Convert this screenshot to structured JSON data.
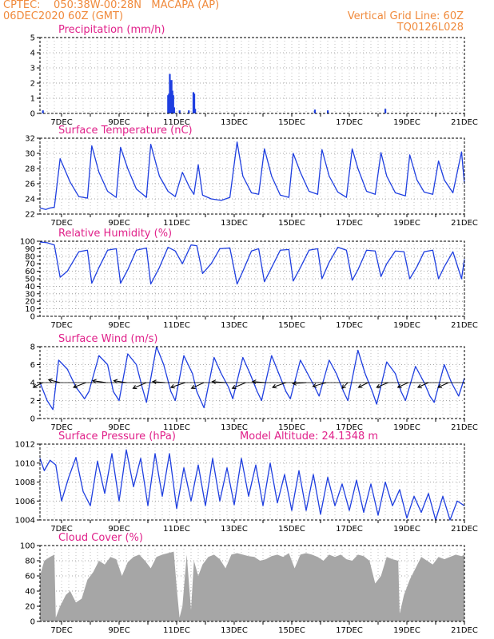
{
  "header": {
    "station": "CPTEC:    050:38W-00:28N   MACAPA (AP)",
    "date": "06DEC2020 60Z (GMT)",
    "grid_note": "Vertical Grid Line: 60Z",
    "run_id": "TQ0126L028"
  },
  "colors": {
    "line": "#1f3fe0",
    "bar": "#1f3fe0",
    "cloud": "#a6a6a6",
    "header": "#f08a3c",
    "title": "#e0218a"
  },
  "chart_data": [
    {
      "id": "precip",
      "type": "bar",
      "title": "Precipitation (mm/h)",
      "xlim": [
        6.25,
        21.0
      ],
      "ylim": [
        0,
        5
      ],
      "yticks": [
        0,
        1,
        2,
        3,
        4,
        5
      ],
      "x_ticks": [
        7,
        9,
        11,
        13,
        15,
        17,
        19,
        21
      ],
      "x_tick_labels": [
        "7DEC",
        "9DEC",
        "11DEC",
        "13DEC",
        "15DEC",
        "17DEC",
        "19DEC",
        "21DEC"
      ],
      "x": [
        6.35,
        10.7,
        10.73,
        10.76,
        10.79,
        10.82,
        10.85,
        10.88,
        10.91,
        11.1,
        11.42,
        11.58,
        11.61,
        11.64,
        15.8,
        16.25,
        18.25
      ],
      "values": [
        0.2,
        1.2,
        1.3,
        2.6,
        1.9,
        2.2,
        1.5,
        1.2,
        0.4,
        0.2,
        0.2,
        1.4,
        1.3,
        0.3,
        0.25,
        0.2,
        0.3
      ]
    },
    {
      "id": "temp",
      "type": "line",
      "title": "Surface Temperature (nC)",
      "xlim": [
        6.25,
        21.0
      ],
      "ylim": [
        22,
        32
      ],
      "yticks": [
        22,
        24,
        26,
        28,
        30,
        32
      ],
      "x_ticks": [
        7,
        9,
        11,
        13,
        15,
        17,
        19,
        21
      ],
      "x_tick_labels": [
        "7DEC",
        "9DEC",
        "11DEC",
        "13DEC",
        "15DEC",
        "17DEC",
        "19DEC",
        "21DEC"
      ],
      "x": [
        6.25,
        6.45,
        6.6,
        6.75,
        6.95,
        7.3,
        7.6,
        7.9,
        8.05,
        8.3,
        8.6,
        8.9,
        9.05,
        9.3,
        9.6,
        9.95,
        10.1,
        10.4,
        10.7,
        10.95,
        11.2,
        11.45,
        11.6,
        11.75,
        11.9,
        12.2,
        12.55,
        12.85,
        13.1,
        13.3,
        13.6,
        13.85,
        14.05,
        14.3,
        14.6,
        14.9,
        15.05,
        15.3,
        15.6,
        15.9,
        16.05,
        16.3,
        16.6,
        16.9,
        17.1,
        17.3,
        17.6,
        17.9,
        18.1,
        18.3,
        18.6,
        18.95,
        19.1,
        19.35,
        19.6,
        19.9,
        20.1,
        20.3,
        20.6,
        20.9,
        21.0
      ],
      "values": [
        22.8,
        22.6,
        22.8,
        22.9,
        29.3,
        26.2,
        24.3,
        24.1,
        31.0,
        27.5,
        25.0,
        24.2,
        30.8,
        28.0,
        25.3,
        24.2,
        31.2,
        27.0,
        25.0,
        24.3,
        27.5,
        25.5,
        24.6,
        28.5,
        24.5,
        24.0,
        23.8,
        24.2,
        31.5,
        27.0,
        24.8,
        24.6,
        30.6,
        27.0,
        24.5,
        24.2,
        30.0,
        27.5,
        25.0,
        24.6,
        30.5,
        27.0,
        24.9,
        24.2,
        30.6,
        28.0,
        25.0,
        24.6,
        30.1,
        27.0,
        24.8,
        24.4,
        29.8,
        26.5,
        24.9,
        24.6,
        29.0,
        26.5,
        24.8,
        30.2,
        26.0
      ]
    },
    {
      "id": "rh",
      "type": "line",
      "title": "Relative Humidity (%)",
      "xlim": [
        6.25,
        21.0
      ],
      "ylim": [
        0,
        100
      ],
      "yticks": [
        0,
        10,
        20,
        30,
        40,
        50,
        60,
        70,
        80,
        90,
        100
      ],
      "x_ticks": [
        7,
        9,
        11,
        13,
        15,
        17,
        19,
        21
      ],
      "x_tick_labels": [
        "7DEC",
        "9DEC",
        "11DEC",
        "13DEC",
        "15DEC",
        "17DEC",
        "19DEC",
        "21DEC"
      ],
      "x": [
        6.25,
        6.5,
        6.75,
        6.95,
        7.2,
        7.6,
        7.9,
        8.05,
        8.3,
        8.6,
        8.9,
        9.05,
        9.3,
        9.6,
        9.95,
        10.1,
        10.4,
        10.7,
        10.95,
        11.2,
        11.5,
        11.7,
        11.9,
        12.2,
        12.5,
        12.85,
        13.1,
        13.3,
        13.6,
        13.85,
        14.05,
        14.3,
        14.6,
        14.9,
        15.05,
        15.3,
        15.6,
        15.9,
        16.05,
        16.3,
        16.6,
        16.9,
        17.1,
        17.3,
        17.6,
        17.9,
        18.1,
        18.3,
        18.6,
        18.9,
        19.1,
        19.35,
        19.6,
        19.9,
        20.1,
        20.3,
        20.6,
        20.9,
        21.0
      ],
      "values": [
        99,
        98,
        95,
        52,
        60,
        86,
        88,
        44,
        65,
        88,
        90,
        44,
        62,
        88,
        91,
        43,
        65,
        92,
        87,
        70,
        95,
        94,
        57,
        70,
        90,
        91,
        43,
        60,
        87,
        90,
        46,
        65,
        88,
        89,
        47,
        65,
        88,
        90,
        50,
        72,
        92,
        88,
        48,
        62,
        88,
        87,
        53,
        70,
        87,
        86,
        50,
        66,
        86,
        88,
        50,
        66,
        86,
        50,
        76
      ]
    },
    {
      "id": "wind",
      "type": "line",
      "title": "Surface Wind (m/s)",
      "xlim": [
        6.25,
        21.0
      ],
      "ylim": [
        0,
        8
      ],
      "yticks": [
        0,
        2,
        4,
        6,
        8
      ],
      "x_ticks": [
        7,
        9,
        11,
        13,
        15,
        17,
        19,
        21
      ],
      "x_tick_labels": [
        "7DEC",
        "9DEC",
        "11DEC",
        "13DEC",
        "15DEC",
        "17DEC",
        "19DEC",
        "21DEC"
      ],
      "x": [
        6.25,
        6.5,
        6.7,
        6.9,
        7.2,
        7.5,
        7.8,
        7.95,
        8.3,
        8.6,
        8.8,
        9.0,
        9.3,
        9.6,
        9.8,
        9.95,
        10.3,
        10.55,
        10.8,
        10.95,
        11.25,
        11.55,
        11.7,
        11.95,
        12.3,
        12.55,
        12.8,
        12.95,
        13.3,
        13.55,
        13.8,
        13.95,
        14.3,
        14.55,
        14.8,
        14.95,
        15.3,
        15.55,
        15.8,
        15.95,
        16.3,
        16.55,
        16.8,
        16.95,
        17.3,
        17.55,
        17.8,
        17.95,
        18.3,
        18.6,
        18.8,
        18.95,
        19.3,
        19.6,
        19.8,
        19.95,
        20.3,
        20.55,
        20.8,
        21.0
      ],
      "values": [
        4.0,
        2.0,
        1.0,
        6.5,
        5.5,
        3.5,
        2.2,
        3.0,
        7.0,
        6.0,
        3.0,
        2.0,
        7.2,
        6.0,
        3.5,
        1.8,
        8.0,
        6.0,
        3.0,
        2.0,
        7.0,
        5.0,
        3.0,
        1.2,
        6.8,
        5.0,
        3.5,
        2.2,
        6.8,
        5.0,
        3.0,
        2.0,
        7.0,
        5.0,
        3.0,
        2.2,
        6.5,
        5.0,
        3.5,
        2.5,
        6.5,
        5.0,
        3.0,
        2.0,
        7.6,
        5.0,
        3.0,
        1.6,
        6.3,
        5.0,
        3.0,
        2.0,
        5.8,
        4.0,
        2.5,
        1.8,
        6.0,
        4.0,
        2.5,
        4.5
      ],
      "vectors": {
        "x": [
          6.35,
          6.95,
          7.85,
          8.55,
          9.25,
          9.95,
          10.6,
          11.3,
          11.95,
          12.7,
          13.4,
          14.1,
          14.8,
          15.5,
          16.2,
          16.95,
          17.65,
          18.35,
          19.05,
          19.75,
          20.45
        ],
        "u": [
          -1.0,
          -1.2,
          -1.3,
          -1.4,
          -1.3,
          -1.4,
          -1.3,
          -1.5,
          -1.3,
          -1.4,
          -1.4,
          -1.4,
          -1.4,
          -1.4,
          -1.4,
          -0.6,
          -1.0,
          -1.2,
          -1.1,
          -1.1,
          -1.1
        ],
        "v": [
          -0.5,
          0.3,
          -0.5,
          0.2,
          0.2,
          -0.6,
          0.1,
          -0.5,
          -0.6,
          0.1,
          -0.6,
          0.1,
          -0.5,
          -0.1,
          -0.4,
          -0.6,
          -0.5,
          -0.5,
          -0.5,
          -0.5,
          -0.5
        ]
      }
    },
    {
      "id": "pressure",
      "type": "line",
      "title": "Surface Pressure (hPa)",
      "subtitle": "Model Altitude: 24.1348 m",
      "xlim": [
        6.25,
        21.0
      ],
      "ylim": [
        1004,
        1012
      ],
      "yticks": [
        1004,
        1006,
        1008,
        1010,
        1012
      ],
      "x_ticks": [
        7,
        9,
        11,
        13,
        15,
        17,
        19,
        21
      ],
      "x_tick_labels": [
        "7DEC",
        "9DEC",
        "11DEC",
        "13DEC",
        "15DEC",
        "17DEC",
        "19DEC",
        "21DEC"
      ],
      "x": [
        6.25,
        6.4,
        6.6,
        6.8,
        7.0,
        7.25,
        7.5,
        7.75,
        8.0,
        8.25,
        8.5,
        8.75,
        9.0,
        9.25,
        9.5,
        9.75,
        10.0,
        10.25,
        10.5,
        10.75,
        11.0,
        11.25,
        11.5,
        11.75,
        12.0,
        12.25,
        12.5,
        12.75,
        13.0,
        13.25,
        13.5,
        13.75,
        14.0,
        14.25,
        14.5,
        14.75,
        15.0,
        15.25,
        15.5,
        15.75,
        16.0,
        16.25,
        16.5,
        16.75,
        17.0,
        17.25,
        17.5,
        17.75,
        18.0,
        18.25,
        18.5,
        18.75,
        19.0,
        19.25,
        19.5,
        19.75,
        20.0,
        20.25,
        20.5,
        20.75,
        21.0
      ],
      "values": [
        1010.5,
        1009.2,
        1010.3,
        1009.8,
        1006.0,
        1008.5,
        1010.6,
        1007.0,
        1005.5,
        1010.2,
        1006.8,
        1011.0,
        1006.0,
        1011.4,
        1007.5,
        1010.5,
        1005.5,
        1011.0,
        1006.5,
        1011.0,
        1005.2,
        1009.5,
        1006.0,
        1009.8,
        1005.5,
        1010.5,
        1006.0,
        1009.5,
        1005.6,
        1010.5,
        1006.5,
        1009.8,
        1005.5,
        1010.0,
        1005.8,
        1008.8,
        1005.0,
        1009.2,
        1005.0,
        1008.8,
        1004.6,
        1008.5,
        1005.5,
        1007.8,
        1005.0,
        1008.2,
        1004.8,
        1007.8,
        1004.5,
        1008.0,
        1005.5,
        1007.2,
        1004.2,
        1006.5,
        1004.8,
        1006.8,
        1004.0,
        1006.5,
        1004.0,
        1006.0,
        1005.5
      ]
    },
    {
      "id": "cloud",
      "type": "area",
      "title": "Cloud Cover (%)",
      "xlim": [
        6.25,
        21.0
      ],
      "ylim": [
        0,
        100
      ],
      "yticks": [
        0,
        20,
        40,
        60,
        80,
        100
      ],
      "x_ticks": [
        7,
        9,
        11,
        13,
        15,
        17,
        19,
        21
      ],
      "x_tick_labels": [
        "7DEC",
        "9DEC",
        "11DEC",
        "13DEC",
        "15DEC",
        "17DEC",
        "19DEC",
        "21DEC"
      ],
      "x": [
        6.25,
        6.4,
        6.6,
        6.75,
        6.8,
        6.95,
        7.15,
        7.3,
        7.5,
        7.7,
        7.9,
        8.1,
        8.3,
        8.5,
        8.7,
        8.9,
        9.1,
        9.3,
        9.5,
        9.7,
        9.9,
        10.1,
        10.3,
        10.5,
        10.7,
        10.9,
        11.0,
        11.1,
        11.2,
        11.35,
        11.5,
        11.6,
        11.75,
        11.9,
        12.1,
        12.3,
        12.5,
        12.7,
        12.9,
        13.1,
        13.3,
        13.5,
        13.7,
        13.9,
        14.1,
        14.3,
        14.5,
        14.7,
        14.9,
        15.1,
        15.3,
        15.5,
        15.7,
        15.9,
        16.1,
        16.3,
        16.5,
        16.7,
        16.9,
        17.1,
        17.3,
        17.5,
        17.7,
        17.9,
        18.1,
        18.3,
        18.5,
        18.7,
        18.75,
        18.9,
        19.1,
        19.3,
        19.5,
        19.7,
        19.9,
        20.1,
        20.3,
        20.5,
        20.7,
        20.9,
        21.0
      ],
      "values": [
        60,
        80,
        85,
        88,
        5,
        20,
        35,
        40,
        25,
        30,
        55,
        65,
        80,
        75,
        85,
        82,
        60,
        78,
        85,
        88,
        80,
        70,
        85,
        88,
        90,
        92,
        45,
        5,
        20,
        88,
        15,
        80,
        60,
        75,
        85,
        88,
        82,
        70,
        88,
        90,
        88,
        86,
        85,
        80,
        82,
        86,
        88,
        85,
        90,
        70,
        88,
        90,
        88,
        85,
        80,
        88,
        85,
        88,
        82,
        80,
        88,
        86,
        80,
        50,
        60,
        85,
        82,
        80,
        10,
        35,
        55,
        70,
        85,
        80,
        75,
        85,
        82,
        85,
        88,
        86,
        88
      ]
    }
  ]
}
